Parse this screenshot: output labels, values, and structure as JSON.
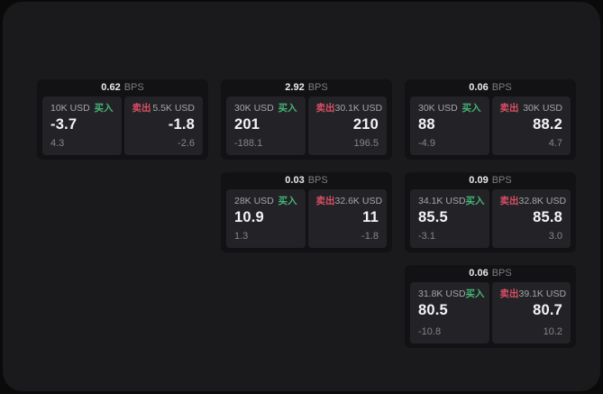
{
  "labels": {
    "bps": "BPS",
    "buy": "买入",
    "sell": "卖出"
  },
  "colors": {
    "background": "#0a0a0b",
    "surface": "#1a1a1c",
    "card": "#121214",
    "panel": "#232327",
    "buy_accent": "#46b474",
    "sell_accent": "#d84f63",
    "value_text": "#f4f4f6",
    "muted_text": "#84848a"
  },
  "cards": [
    {
      "bps": "0.62",
      "buy": {
        "amount": "10K USD",
        "value": "-3.7",
        "sub": "4.3"
      },
      "sell": {
        "amount": "5.5K USD",
        "value": "-1.8",
        "sub": "-2.6"
      }
    },
    {
      "bps": "2.92",
      "buy": {
        "amount": "30K USD",
        "value": "201",
        "sub": "-188.1"
      },
      "sell": {
        "amount": "30.1K USD",
        "value": "210",
        "sub": "196.5"
      }
    },
    {
      "bps": "0.06",
      "buy": {
        "amount": "30K USD",
        "value": "88",
        "sub": "-4.9"
      },
      "sell": {
        "amount": "30K USD",
        "value": "88.2",
        "sub": "4.7"
      }
    },
    {
      "bps": "0.03",
      "buy": {
        "amount": "28K USD",
        "value": "10.9",
        "sub": "1.3"
      },
      "sell": {
        "amount": "32.6K USD",
        "value": "11",
        "sub": "-1.8"
      }
    },
    {
      "bps": "0.09",
      "buy": {
        "amount": "34.1K USD",
        "value": "85.5",
        "sub": "-3.1"
      },
      "sell": {
        "amount": "32.8K USD",
        "value": "85.8",
        "sub": "3.0"
      }
    },
    {
      "bps": "0.06",
      "buy": {
        "amount": "31.8K USD",
        "value": "80.5",
        "sub": "-10.8"
      },
      "sell": {
        "amount": "39.1K USD",
        "value": "80.7",
        "sub": "10.2"
      }
    }
  ]
}
